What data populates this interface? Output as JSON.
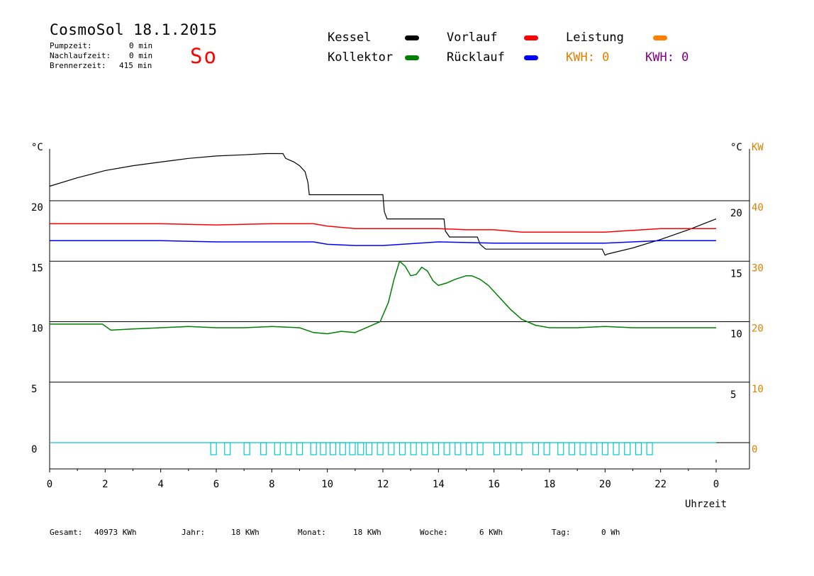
{
  "header": {
    "title": "CosmoSol 18.1.2015",
    "day": "So",
    "stats": [
      {
        "label": "Pumpzeit:",
        "value": "0 min"
      },
      {
        "label": "Nachlaufzeit:",
        "value": "0 min"
      },
      {
        "label": "Brennerzeit:",
        "value": "415 min"
      }
    ]
  },
  "legend": {
    "items": [
      {
        "label": "Kessel",
        "color": "#000000"
      },
      {
        "label": "Vorlauf",
        "color": "#ff0000"
      },
      {
        "label": "Leistung",
        "color": "#ff8000"
      },
      {
        "label": "Kollektor",
        "color": "#008000"
      },
      {
        "label": "Rücklauf",
        "color": "#0000ff"
      }
    ],
    "kwh_orange": "KWH: 0",
    "kwh_purple": "KWH: 0",
    "kwh_orange_color": "#e08000",
    "kwh_purple_color": "#800080"
  },
  "chart_data": {
    "type": "line",
    "xlabel": "Uhrzeit",
    "ylabel_left": "°C",
    "ylabel_right": "°C",
    "ylabel_right2": "KW",
    "x_ticks": [
      "0",
      "2",
      "4",
      "6",
      "8",
      "10",
      "12",
      "14",
      "16",
      "18",
      "20",
      "22",
      "0"
    ],
    "y_ticks_left": [
      "0",
      "5",
      "10",
      "15",
      "20"
    ],
    "y_ticks_right": [
      "5",
      "10",
      "15",
      "20"
    ],
    "y_ticks_kw": [
      "0",
      "10",
      "20",
      "30",
      "40"
    ],
    "xlim": [
      0,
      24
    ],
    "ylim": [
      -2,
      25
    ],
    "grid": true,
    "series": [
      {
        "name": "Kessel",
        "color": "#000000",
        "x": [
          0,
          1,
          2,
          3,
          4,
          5,
          6,
          7,
          7.8,
          8.4,
          8.5,
          8.8,
          9.0,
          9.2,
          9.3,
          9.35,
          12.0,
          12.05,
          12.15,
          14.2,
          14.25,
          14.4,
          15.4,
          15.5,
          15.7,
          19.9,
          20.0,
          20.1,
          21.0,
          22.0,
          23.0,
          24.0
        ],
        "y": [
          21.2,
          21.9,
          22.5,
          22.9,
          23.2,
          23.5,
          23.7,
          23.8,
          23.9,
          23.9,
          23.5,
          23.2,
          22.9,
          22.4,
          21.5,
          20.5,
          20.5,
          19.1,
          18.5,
          18.5,
          17.5,
          17.0,
          17.0,
          16.4,
          16.0,
          16.0,
          15.5,
          15.6,
          16.1,
          16.8,
          17.6,
          18.5
        ]
      },
      {
        "name": "Vorlauf",
        "color": "#ff0000",
        "x": [
          0,
          2,
          4,
          6,
          8,
          9.5,
          10.0,
          11.0,
          12.0,
          14.0,
          15.0,
          16.0,
          17.0,
          18.0,
          20.0,
          22.0,
          24.0
        ],
        "y": [
          18.1,
          18.1,
          18.1,
          18.0,
          18.1,
          18.1,
          17.9,
          17.7,
          17.7,
          17.7,
          17.6,
          17.6,
          17.4,
          17.4,
          17.4,
          17.7,
          17.7
        ]
      },
      {
        "name": "Rücklauf",
        "color": "#0000ff",
        "x": [
          0,
          2,
          4,
          6,
          8,
          9.5,
          10.0,
          11.0,
          12.0,
          14.0,
          16.0,
          18.0,
          20.0,
          22.0,
          24.0
        ],
        "y": [
          16.7,
          16.7,
          16.7,
          16.6,
          16.6,
          16.6,
          16.4,
          16.3,
          16.3,
          16.6,
          16.5,
          16.5,
          16.5,
          16.7,
          16.7
        ]
      },
      {
        "name": "Kollektor",
        "color": "#008000",
        "x": [
          0,
          1.0,
          1.9,
          2.2,
          3.0,
          4.0,
          5.0,
          6.0,
          7.0,
          8.0,
          9.0,
          9.5,
          10.0,
          10.5,
          11.0,
          11.5,
          11.9,
          12.2,
          12.4,
          12.6,
          12.8,
          13.0,
          13.2,
          13.4,
          13.6,
          13.8,
          14.0,
          14.3,
          14.6,
          15.0,
          15.2,
          15.5,
          15.8,
          16.2,
          16.6,
          17.0,
          17.5,
          18.0,
          19.0,
          20.0,
          21.0,
          22.0,
          23.0,
          24.0
        ],
        "y": [
          9.8,
          9.8,
          9.8,
          9.3,
          9.4,
          9.5,
          9.6,
          9.5,
          9.5,
          9.6,
          9.5,
          9.1,
          9.0,
          9.2,
          9.1,
          9.6,
          10.0,
          11.6,
          13.5,
          15.0,
          14.6,
          13.8,
          13.9,
          14.5,
          14.2,
          13.4,
          13.0,
          13.2,
          13.5,
          13.8,
          13.8,
          13.5,
          13.0,
          12.0,
          11.0,
          10.2,
          9.7,
          9.5,
          9.5,
          9.6,
          9.5,
          9.5,
          9.5,
          9.5
        ]
      }
    ],
    "pump_pulses_x": [
      5.8,
      6.3,
      7.0,
      7.6,
      8.1,
      8.5,
      8.9,
      9.4,
      9.75,
      10.1,
      10.45,
      10.8,
      11.1,
      11.4,
      11.8,
      12.2,
      12.6,
      13.0,
      13.4,
      13.8,
      14.2,
      14.6,
      15.0,
      15.4,
      16.0,
      16.4,
      16.8,
      17.4,
      17.8,
      18.3,
      18.7,
      19.1,
      19.5,
      19.9,
      20.3,
      20.7,
      21.1,
      21.5
    ]
  },
  "footer": {
    "items": [
      {
        "label": "Gesamt:",
        "value": "40973 KWh"
      },
      {
        "label": "Jahr:",
        "value": "18 KWh"
      },
      {
        "label": "Monat:",
        "value": "18 KWh"
      },
      {
        "label": "Woche:",
        "value": "6 KWh"
      },
      {
        "label": "Tag:",
        "value": "0 Wh"
      }
    ]
  }
}
